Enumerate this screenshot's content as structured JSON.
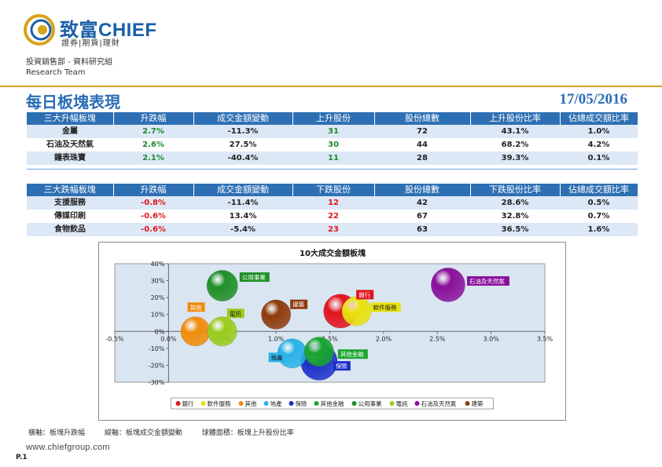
{
  "header": {
    "brand_cn": "致富",
    "brand_en": "CHIEF",
    "tagline": "證券|期貨|理財",
    "department": "投資銷售部 - 資料研究組",
    "team": "Research Team",
    "title": "每日板塊表現",
    "date": "17/05/2016"
  },
  "colors": {
    "accent": "#2d6fb3",
    "gold": "#d9a21b",
    "up": "#1d8a2a",
    "down": "#e0161b"
  },
  "rising_table": {
    "headers": [
      "三大升幅板塊",
      "升跌幅",
      "成交金額變動",
      "上升股份",
      "股份總數",
      "上升股份比率",
      "佔總成交額比率"
    ],
    "rows": [
      [
        "金屬",
        "2.7%",
        "-11.3%",
        "31",
        "72",
        "43.1%",
        "1.0%"
      ],
      [
        "石油及天然氣",
        "2.6%",
        "27.5%",
        "30",
        "44",
        "68.2%",
        "4.2%"
      ],
      [
        "鐘表珠寶",
        "2.1%",
        "-40.4%",
        "11",
        "28",
        "39.3%",
        "0.1%"
      ]
    ]
  },
  "falling_table": {
    "headers": [
      "三大跌幅板塊",
      "升跌幅",
      "成交金額變動",
      "下跌股份",
      "股份總數",
      "下跌股份比率",
      "佔總成交額比率"
    ],
    "rows": [
      [
        "支援服務",
        "-0.8%",
        "-11.4%",
        "12",
        "42",
        "28.6%",
        "0.5%"
      ],
      [
        "傳媒印刷",
        "-0.6%",
        "13.4%",
        "22",
        "67",
        "32.8%",
        "0.7%"
      ],
      [
        "食物飲品",
        "-0.6%",
        "-5.4%",
        "23",
        "63",
        "36.5%",
        "1.6%"
      ]
    ]
  },
  "chart_data": {
    "type": "scatter",
    "title": "10大成交金額板塊",
    "xlabel": "板塊升跌幅",
    "ylabel": "板塊成交金額變動",
    "xlim": [
      -0.5,
      3.5
    ],
    "ylim": [
      -30,
      40
    ],
    "xticks": [
      "-0.5%",
      "0.0%",
      "0.5%",
      "1.0%",
      "1.5%",
      "2.0%",
      "2.5%",
      "3.0%",
      "3.5%"
    ],
    "yticks": [
      "-30%",
      "-20%",
      "-10%",
      "0%",
      "10%",
      "20%",
      "30%",
      "40%"
    ],
    "grid": false,
    "legend_position": "bottom",
    "series": [
      {
        "name": "銀行",
        "x": 1.6,
        "y": 12,
        "size": 0.6,
        "color": "#e0141e"
      },
      {
        "name": "軟件服務",
        "x": 1.75,
        "y": 12,
        "size": 0.45,
        "color": "#e8e20e"
      },
      {
        "name": "其他",
        "x": 0.25,
        "y": 0,
        "size": 0.45,
        "color": "#f08c0a"
      },
      {
        "name": "地產",
        "x": 1.15,
        "y": -13,
        "size": 0.45,
        "color": "#29b2e6"
      },
      {
        "name": "保險",
        "x": 1.4,
        "y": -18,
        "size": 0.7,
        "color": "#1b2fc8"
      },
      {
        "name": "其他金融",
        "x": 1.4,
        "y": -12,
        "size": 0.45,
        "color": "#19a52e"
      },
      {
        "name": "公用事業",
        "x": 0.5,
        "y": 27,
        "size": 0.5,
        "color": "#1f8f27"
      },
      {
        "name": "電訊",
        "x": 0.5,
        "y": 0,
        "size": 0.45,
        "color": "#9acc1a"
      },
      {
        "name": "石油及天然氣",
        "x": 2.6,
        "y": 27.5,
        "size": 0.6,
        "color": "#8a0f9a"
      },
      {
        "name": "建築",
        "x": 1.0,
        "y": 10,
        "size": 0.45,
        "color": "#8e3b0c"
      }
    ],
    "point_labels": [
      {
        "name": "公用事業",
        "bg": "#1f8f27",
        "fg": "#ffffff"
      },
      {
        "name": "銀行",
        "bg": "#e0141e",
        "fg": "#ffffff"
      },
      {
        "name": "石油及天然氣",
        "bg": "#8a0f9a",
        "fg": "#ffffff"
      },
      {
        "name": "其他",
        "bg": "#f08c0a",
        "fg": "#ffffff"
      },
      {
        "name": "建築",
        "bg": "#8e3b0c",
        "fg": "#ffffff"
      },
      {
        "name": "電訊",
        "bg": "#9acc1a",
        "fg": "#1a1a1a"
      },
      {
        "name": "軟件服務",
        "bg": "#e8e20e",
        "fg": "#1a1a1a"
      },
      {
        "name": "其他金融",
        "bg": "#19a52e",
        "fg": "#ffffff"
      },
      {
        "name": "地產",
        "bg": "#29b2e6",
        "fg": "#1a1a1a"
      },
      {
        "name": "保險",
        "bg": "#1b2fc8",
        "fg": "#ffffff"
      }
    ],
    "legend": [
      "銀行",
      "軟件服務",
      "其他",
      "地產",
      "保險",
      "其他金融",
      "公用事業",
      "電訊",
      "石油及天然氣",
      "建築"
    ]
  },
  "footnote": {
    "x_axis": "橫軸：板塊升跌幅",
    "y_axis": "縱軸：板塊成交金額變動",
    "bubble": "球體面積：板塊上升股份比率"
  },
  "footer": {
    "website": "www.chiefgroup.com",
    "page": "P.1"
  }
}
